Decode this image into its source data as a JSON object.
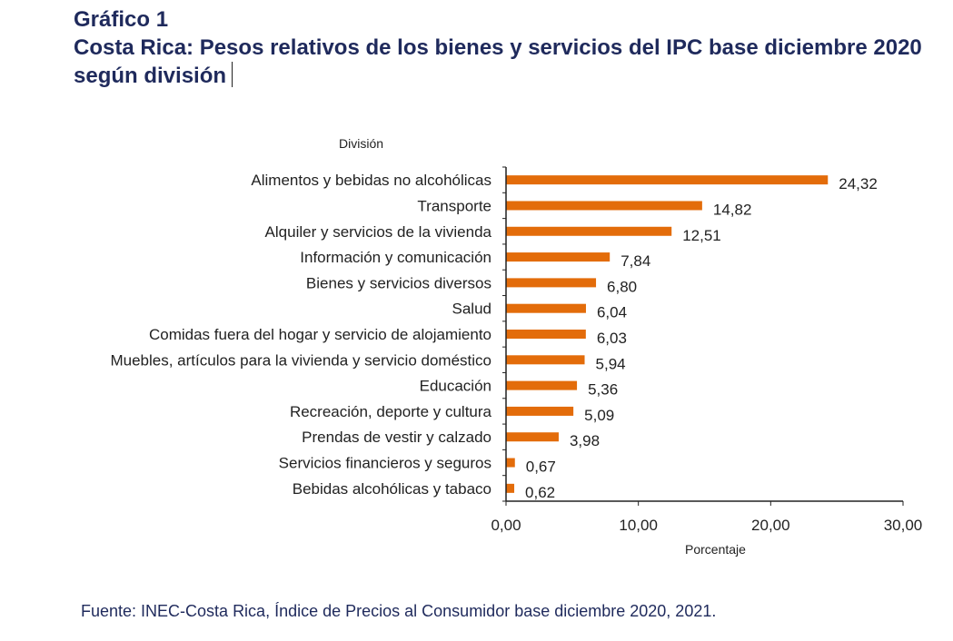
{
  "title_line1": "Gráfico 1",
  "title_line2": "Costa Rica: Pesos relativos de los bienes y servicios del IPC base diciembre 2020 según división",
  "source": "Fuente: INEC-Costa Rica, Índice de Precios al Consumidor base diciembre 2020, 2021.",
  "colors": {
    "bar": "#e36c0a",
    "title": "#1f2a5c"
  },
  "chart_data": {
    "type": "bar",
    "orientation": "horizontal",
    "ylabel": "División",
    "xlabel": "Porcentaje",
    "xlim": [
      0,
      30
    ],
    "xticks": [
      "0,00",
      "10,00",
      "20,00",
      "30,00"
    ],
    "grid": false,
    "categories": [
      "Alimentos y bebidas no alcohólicas",
      "Transporte",
      "Alquiler y servicios de la vivienda",
      "Información y comunicación",
      "Bienes y servicios diversos",
      "Salud",
      "Comidas fuera del hogar y servicio de alojamiento",
      "Muebles, artículos para la vivienda y servicio doméstico",
      "Educación",
      "Recreación, deporte y cultura",
      "Prendas de vestir y calzado",
      "Servicios financieros y seguros",
      "Bebidas alcohólicas y tabaco"
    ],
    "values": [
      24.32,
      14.82,
      12.51,
      7.84,
      6.8,
      6.04,
      6.03,
      5.94,
      5.36,
      5.09,
      3.98,
      0.67,
      0.62
    ],
    "value_labels": [
      "24,32",
      "14,82",
      "12,51",
      "7,84",
      "6,80",
      "6,04",
      "6,03",
      "5,94",
      "5,36",
      "5,09",
      "3,98",
      "0,67",
      "0,62"
    ]
  }
}
